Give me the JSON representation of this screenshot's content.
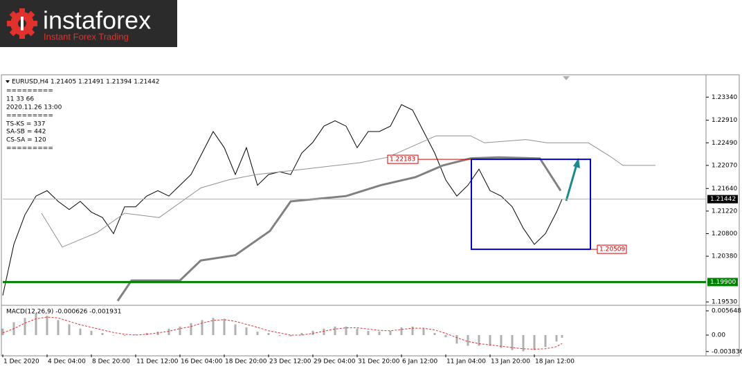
{
  "logo": {
    "brand": "instaforex",
    "tagline": "Instant Forex Trading"
  },
  "chart_data": [
    {
      "type": "line",
      "info_lines": [
        "EURUSD,H4  1.21405 1.21491 1.21394 1.21442",
        "=========",
        "11 33 66",
        "2020.11.26 13:00",
        "=========",
        "TS-KS = 337",
        "SA-SB = 442",
        "CS-SA = 120",
        "========="
      ],
      "xlim": [
        0,
        254
      ],
      "ylim": [
        1.1948,
        1.2373
      ],
      "yticks": [
        {
          "value": 1.1953,
          "label": "1.19530"
        },
        {
          "value": 1.2038,
          "label": "1.20380"
        },
        {
          "value": 1.208,
          "label": "1.20800"
        },
        {
          "value": 1.2122,
          "label": "1.21220"
        },
        {
          "value": 1.2164,
          "label": "1.21640"
        },
        {
          "value": 1.2207,
          "label": "1.22070"
        },
        {
          "value": 1.2249,
          "label": "1.22490"
        },
        {
          "value": 1.2291,
          "label": "1.22910"
        },
        {
          "value": 1.2334,
          "label": "1.23340"
        }
      ],
      "series": [
        {
          "color": "#000000",
          "x": [
            0,
            4,
            8,
            12,
            16,
            20,
            24,
            28,
            32,
            36,
            40,
            44,
            48,
            52,
            56,
            60,
            64,
            68,
            72,
            76,
            80,
            84,
            88,
            92,
            96,
            100,
            104,
            108,
            112,
            116,
            120,
            124,
            128,
            132,
            136,
            140,
            144,
            148,
            152,
            156,
            160,
            164,
            168,
            172,
            176,
            180,
            184,
            188,
            192,
            196,
            200,
            202
          ],
          "values": [
            1.1965,
            1.206,
            1.2115,
            1.215,
            1.216,
            1.214,
            1.2125,
            1.214,
            1.212,
            1.211,
            1.208,
            1.213,
            1.213,
            1.215,
            1.216,
            1.215,
            1.217,
            1.219,
            1.223,
            1.227,
            1.224,
            1.219,
            1.224,
            1.217,
            1.219,
            1.2195,
            1.219,
            1.223,
            1.225,
            1.228,
            1.229,
            1.228,
            1.224,
            1.227,
            1.227,
            1.228,
            1.232,
            1.231,
            1.227,
            1.223,
            1.218,
            1.215,
            1.217,
            1.22,
            1.216,
            1.215,
            1.213,
            1.209,
            1.206,
            1.208,
            1.212,
            1.21442
          ]
        },
        {
          "color": "#909090",
          "x": [
            14,
            21.5,
            34,
            44,
            56.5,
            71.5,
            81.5,
            91.5,
            109,
            129,
            139,
            156.5,
            169,
            174,
            189,
            196.5,
            211.5,
            219,
            224,
            235.75
          ],
          "values": [
            1.2118,
            1.2055,
            1.2082,
            1.2118,
            1.211,
            1.2165,
            1.218,
            1.219,
            1.22,
            1.2212,
            1.2222,
            1.2262,
            1.2262,
            1.2249,
            1.2255,
            1.2249,
            1.2249,
            1.2225,
            1.2207,
            1.2207
          ]
        },
        {
          "color": "#808080",
          "x": [
            41.5,
            46.5,
            64,
            71.5,
            84,
            96.5,
            104,
            124,
            136.5,
            149,
            159,
            169,
            179,
            194,
            201.5
          ],
          "values": [
            1.1955,
            1.1993,
            1.1993,
            1.203,
            1.204,
            1.2085,
            1.214,
            1.215,
            1.217,
            1.2185,
            1.2207,
            1.222,
            1.2222,
            1.222,
            1.216
          ]
        }
      ],
      "current_price": 1.21442,
      "level": {
        "value": 1.199,
        "label": "1.19900",
        "color": "#008000"
      },
      "box_levels": [
        1.22183,
        1.20509
      ],
      "box_color": "#0000cc"
    },
    {
      "type": "bar",
      "title": "MACD(12,26,9) -0.000626 -0.001931",
      "xlim": [
        0,
        254
      ],
      "ylim": [
        -0.00452,
        0.00678
      ],
      "yticks": [
        -0.003836,
        {
          "value": 0,
          "label": "0.00"
        },
        0.005648
      ],
      "xticks": [
        {
          "value": 0,
          "label": "1 Dec 2020"
        },
        {
          "value": 16,
          "label": "4 Dec 04:00"
        },
        {
          "value": 32,
          "label": "8 Dec 20:00"
        },
        {
          "value": 48,
          "label": "11 Dec 12:00"
        },
        {
          "value": 64,
          "label": "16 Dec 04:00"
        },
        {
          "value": 80,
          "label": "18 Dec 20:00"
        },
        {
          "value": 96,
          "label": "23 Dec 12:00"
        },
        {
          "value": 112,
          "label": "29 Dec 04:00"
        },
        {
          "value": 128,
          "label": "31 Dec 20:00"
        },
        {
          "value": 144,
          "label": "6 Jan 12:00"
        },
        {
          "value": 160,
          "label": "11 Jan 04:00"
        },
        {
          "value": 176,
          "label": "13 Jan 20:00"
        },
        {
          "value": 192,
          "label": "18 Jan 12:00"
        }
      ],
      "x": [
        0,
        4,
        8,
        12,
        16,
        20,
        24,
        28,
        32,
        36,
        40,
        44,
        48,
        52,
        56,
        60,
        64,
        68,
        72,
        76,
        80,
        84,
        88,
        92,
        96,
        100,
        104,
        108,
        112,
        116,
        120,
        124,
        128,
        132,
        136,
        140,
        144,
        148,
        152,
        156,
        160,
        164,
        168,
        172,
        176,
        180,
        184,
        188,
        192,
        196,
        200,
        202
      ],
      "series": [
        {
          "color": "#b0b0b0",
          "values": [
            0.0015,
            0.003,
            0.004,
            0.005,
            0.0045,
            0.0035,
            0.0025,
            0.0015,
            0.001,
            0.0005,
            0,
            -0.0002,
            0.0002,
            0.0005,
            0.0008,
            0.0015,
            0.002,
            0.0028,
            0.0035,
            0.004,
            0.0038,
            0.0025,
            0.0018,
            0.0008,
            0.0005,
            -0.0002,
            -0.0003,
            0.0005,
            0.001,
            0.0015,
            0.002,
            0.002,
            0.0015,
            0.001,
            0.0008,
            0.001,
            0.0018,
            0.002,
            0.0015,
            0.0005,
            -0.0005,
            -0.002,
            -0.0025,
            -0.0025,
            -0.0025,
            -0.003,
            -0.0035,
            -0.0038,
            -0.0035,
            -0.0028,
            -0.0015,
            -0.000626
          ]
        },
        {
          "color": "#e03030",
          "type": "line",
          "values": [
            0.0005,
            0.0015,
            0.0028,
            0.0038,
            0.0042,
            0.004,
            0.0032,
            0.0024,
            0.0018,
            0.0012,
            0.0006,
            0.0002,
            0,
            0.0002,
            0.0005,
            0.0009,
            0.0015,
            0.002,
            0.0028,
            0.0034,
            0.0036,
            0.0032,
            0.0025,
            0.0018,
            0.001,
            0.0005,
            0,
            0,
            0.0004,
            0.0009,
            0.0014,
            0.0017,
            0.0017,
            0.0014,
            0.0011,
            0.001,
            0.0013,
            0.0016,
            0.0016,
            0.0012,
            0.0004,
            -0.0006,
            -0.0015,
            -0.002,
            -0.0023,
            -0.0026,
            -0.0029,
            -0.0032,
            -0.0033,
            -0.0032,
            -0.0027,
            -0.001931
          ]
        }
      ]
    }
  ]
}
